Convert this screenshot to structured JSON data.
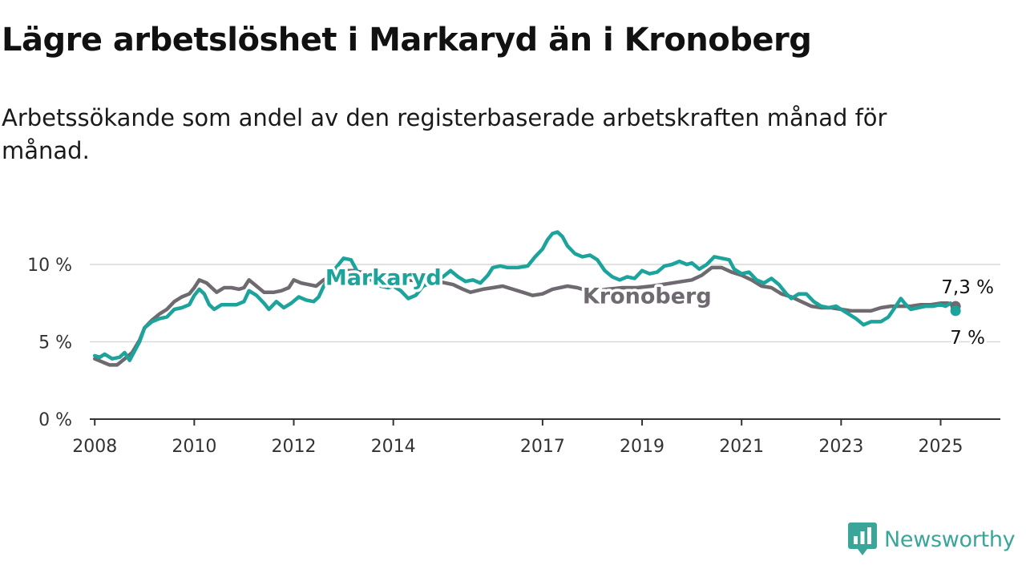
{
  "title": "Lägre arbetslöshet i Markaryd än i Kronoberg",
  "subtitle": "Arbetssökande som andel av den registerbaserade arbetskraften månad för månad.",
  "brand": {
    "name": "Newsworthy",
    "icon": "newsworthy-logo-icon",
    "color": "#3aa69a"
  },
  "chart_data": {
    "type": "line",
    "title": "Lägre arbetslöshet i Markaryd än i Kronoberg",
    "xlabel": "",
    "ylabel": "",
    "xlim": [
      2007.9,
      2026.2
    ],
    "ylim": [
      0,
      10
    ],
    "y_ticks": [
      0,
      5,
      10
    ],
    "y_tick_labels": [
      "0 %",
      "5 %",
      "10 %"
    ],
    "x_ticks": [
      2008,
      2010,
      2012,
      2014,
      2017,
      2019,
      2021,
      2023,
      2025
    ],
    "x_tick_labels": [
      "2008",
      "2010",
      "2012",
      "2014",
      "2017",
      "2019",
      "2021",
      "2023",
      "2025"
    ],
    "grid": true,
    "series": [
      {
        "name": "Kronoberg",
        "color": "#6e6a70",
        "end_label": "7,3 %",
        "points": [
          [
            2008.0,
            3.9
          ],
          [
            2008.15,
            3.7
          ],
          [
            2008.3,
            3.5
          ],
          [
            2008.45,
            3.5
          ],
          [
            2008.6,
            3.9
          ],
          [
            2008.75,
            4.3
          ],
          [
            2008.9,
            5.1
          ],
          [
            2009.0,
            5.9
          ],
          [
            2009.15,
            6.4
          ],
          [
            2009.3,
            6.8
          ],
          [
            2009.45,
            7.1
          ],
          [
            2009.6,
            7.6
          ],
          [
            2009.75,
            7.9
          ],
          [
            2009.9,
            8.1
          ],
          [
            2010.0,
            8.5
          ],
          [
            2010.1,
            9.0
          ],
          [
            2010.25,
            8.8
          ],
          [
            2010.35,
            8.5
          ],
          [
            2010.45,
            8.2
          ],
          [
            2010.6,
            8.5
          ],
          [
            2010.75,
            8.5
          ],
          [
            2010.9,
            8.4
          ],
          [
            2011.0,
            8.5
          ],
          [
            2011.1,
            9.0
          ],
          [
            2011.25,
            8.6
          ],
          [
            2011.4,
            8.2
          ],
          [
            2011.6,
            8.2
          ],
          [
            2011.75,
            8.3
          ],
          [
            2011.9,
            8.5
          ],
          [
            2012.0,
            9.0
          ],
          [
            2012.15,
            8.8
          ],
          [
            2012.3,
            8.7
          ],
          [
            2012.45,
            8.6
          ],
          [
            2012.6,
            9.0
          ],
          [
            2012.8,
            9.3
          ],
          [
            2013.0,
            9.6
          ],
          [
            2013.2,
            9.6
          ],
          [
            2013.5,
            9.4
          ],
          [
            2013.8,
            9.2
          ],
          [
            2014.0,
            9.1
          ],
          [
            2014.3,
            9.0
          ],
          [
            2014.6,
            8.9
          ],
          [
            2014.9,
            8.9
          ],
          [
            2015.2,
            8.7
          ],
          [
            2015.4,
            8.4
          ],
          [
            2015.55,
            8.2
          ],
          [
            2015.8,
            8.4
          ],
          [
            2016.0,
            8.5
          ],
          [
            2016.2,
            8.6
          ],
          [
            2016.4,
            8.4
          ],
          [
            2016.6,
            8.2
          ],
          [
            2016.8,
            8.0
          ],
          [
            2017.0,
            8.1
          ],
          [
            2017.2,
            8.4
          ],
          [
            2017.5,
            8.6
          ],
          [
            2017.7,
            8.5
          ],
          [
            2017.9,
            8.3
          ],
          [
            2018.1,
            8.3
          ],
          [
            2018.3,
            8.4
          ],
          [
            2018.6,
            8.5
          ],
          [
            2018.9,
            8.5
          ],
          [
            2019.2,
            8.6
          ],
          [
            2019.6,
            8.8
          ],
          [
            2020.0,
            9.0
          ],
          [
            2020.2,
            9.3
          ],
          [
            2020.4,
            9.8
          ],
          [
            2020.6,
            9.8
          ],
          [
            2020.8,
            9.5
          ],
          [
            2021.0,
            9.3
          ],
          [
            2021.2,
            9.0
          ],
          [
            2021.4,
            8.6
          ],
          [
            2021.6,
            8.5
          ],
          [
            2021.8,
            8.1
          ],
          [
            2022.0,
            7.9
          ],
          [
            2022.2,
            7.6
          ],
          [
            2022.4,
            7.3
          ],
          [
            2022.6,
            7.2
          ],
          [
            2022.8,
            7.2
          ],
          [
            2023.0,
            7.1
          ],
          [
            2023.2,
            7.0
          ],
          [
            2023.4,
            7.0
          ],
          [
            2023.6,
            7.0
          ],
          [
            2023.8,
            7.2
          ],
          [
            2024.0,
            7.3
          ],
          [
            2024.2,
            7.3
          ],
          [
            2024.4,
            7.3
          ],
          [
            2024.6,
            7.4
          ],
          [
            2024.8,
            7.4
          ],
          [
            2025.0,
            7.5
          ],
          [
            2025.15,
            7.5
          ],
          [
            2025.3,
            7.3
          ]
        ]
      },
      {
        "name": "Markaryd",
        "color": "#1ba39c",
        "end_label": "7 %",
        "points": [
          [
            2008.0,
            4.1
          ],
          [
            2008.1,
            4.0
          ],
          [
            2008.2,
            4.2
          ],
          [
            2008.35,
            3.9
          ],
          [
            2008.5,
            4.0
          ],
          [
            2008.6,
            4.3
          ],
          [
            2008.7,
            3.8
          ],
          [
            2008.8,
            4.4
          ],
          [
            2008.9,
            5.0
          ],
          [
            2009.0,
            5.9
          ],
          [
            2009.15,
            6.3
          ],
          [
            2009.3,
            6.5
          ],
          [
            2009.45,
            6.6
          ],
          [
            2009.6,
            7.1
          ],
          [
            2009.75,
            7.2
          ],
          [
            2009.9,
            7.4
          ],
          [
            2010.0,
            8.0
          ],
          [
            2010.1,
            8.4
          ],
          [
            2010.2,
            8.1
          ],
          [
            2010.3,
            7.4
          ],
          [
            2010.4,
            7.1
          ],
          [
            2010.55,
            7.4
          ],
          [
            2010.7,
            7.4
          ],
          [
            2010.85,
            7.4
          ],
          [
            2011.0,
            7.6
          ],
          [
            2011.1,
            8.3
          ],
          [
            2011.25,
            8.0
          ],
          [
            2011.4,
            7.5
          ],
          [
            2011.5,
            7.1
          ],
          [
            2011.65,
            7.6
          ],
          [
            2011.8,
            7.2
          ],
          [
            2011.95,
            7.5
          ],
          [
            2012.1,
            7.9
          ],
          [
            2012.25,
            7.7
          ],
          [
            2012.4,
            7.6
          ],
          [
            2012.5,
            7.9
          ],
          [
            2012.6,
            8.6
          ],
          [
            2012.75,
            9.4
          ],
          [
            2012.9,
            10.0
          ],
          [
            2013.0,
            10.4
          ],
          [
            2013.15,
            10.3
          ],
          [
            2013.3,
            9.4
          ],
          [
            2013.45,
            9.0
          ],
          [
            2013.6,
            9.0
          ],
          [
            2013.75,
            8.6
          ],
          [
            2013.9,
            8.5
          ],
          [
            2014.0,
            8.6
          ],
          [
            2014.15,
            8.3
          ],
          [
            2014.3,
            7.8
          ],
          [
            2014.45,
            8.0
          ],
          [
            2014.6,
            8.6
          ],
          [
            2014.75,
            8.8
          ],
          [
            2014.9,
            9.0
          ],
          [
            2015.0,
            9.2
          ],
          [
            2015.15,
            9.6
          ],
          [
            2015.3,
            9.2
          ],
          [
            2015.45,
            8.9
          ],
          [
            2015.6,
            9.0
          ],
          [
            2015.75,
            8.8
          ],
          [
            2015.9,
            9.3
          ],
          [
            2016.0,
            9.8
          ],
          [
            2016.15,
            9.9
          ],
          [
            2016.3,
            9.8
          ],
          [
            2016.5,
            9.8
          ],
          [
            2016.7,
            9.9
          ],
          [
            2016.85,
            10.5
          ],
          [
            2017.0,
            11.0
          ],
          [
            2017.1,
            11.6
          ],
          [
            2017.2,
            12.0
          ],
          [
            2017.3,
            12.1
          ],
          [
            2017.4,
            11.8
          ],
          [
            2017.5,
            11.2
          ],
          [
            2017.65,
            10.7
          ],
          [
            2017.8,
            10.5
          ],
          [
            2017.95,
            10.6
          ],
          [
            2018.1,
            10.3
          ],
          [
            2018.25,
            9.6
          ],
          [
            2018.4,
            9.2
          ],
          [
            2018.55,
            9.0
          ],
          [
            2018.7,
            9.2
          ],
          [
            2018.85,
            9.1
          ],
          [
            2019.0,
            9.6
          ],
          [
            2019.15,
            9.4
          ],
          [
            2019.3,
            9.5
          ],
          [
            2019.45,
            9.9
          ],
          [
            2019.6,
            10.0
          ],
          [
            2019.75,
            10.2
          ],
          [
            2019.9,
            10.0
          ],
          [
            2020.0,
            10.1
          ],
          [
            2020.15,
            9.7
          ],
          [
            2020.3,
            10.0
          ],
          [
            2020.45,
            10.5
          ],
          [
            2020.6,
            10.4
          ],
          [
            2020.75,
            10.3
          ],
          [
            2020.85,
            9.7
          ],
          [
            2021.0,
            9.4
          ],
          [
            2021.15,
            9.5
          ],
          [
            2021.3,
            9.0
          ],
          [
            2021.45,
            8.8
          ],
          [
            2021.6,
            9.1
          ],
          [
            2021.75,
            8.7
          ],
          [
            2021.9,
            8.1
          ],
          [
            2022.0,
            7.8
          ],
          [
            2022.15,
            8.1
          ],
          [
            2022.3,
            8.1
          ],
          [
            2022.45,
            7.6
          ],
          [
            2022.6,
            7.3
          ],
          [
            2022.75,
            7.2
          ],
          [
            2022.9,
            7.3
          ],
          [
            2023.0,
            7.1
          ],
          [
            2023.15,
            6.8
          ],
          [
            2023.3,
            6.5
          ],
          [
            2023.45,
            6.1
          ],
          [
            2023.6,
            6.3
          ],
          [
            2023.8,
            6.3
          ],
          [
            2023.95,
            6.6
          ],
          [
            2024.1,
            7.3
          ],
          [
            2024.2,
            7.8
          ],
          [
            2024.3,
            7.4
          ],
          [
            2024.4,
            7.1
          ],
          [
            2024.55,
            7.2
          ],
          [
            2024.7,
            7.3
          ],
          [
            2024.85,
            7.3
          ],
          [
            2025.0,
            7.4
          ],
          [
            2025.1,
            7.3
          ],
          [
            2025.2,
            7.5
          ],
          [
            2025.3,
            7.0
          ]
        ]
      }
    ],
    "labels": [
      {
        "series": "Markaryd",
        "text": "Markaryd",
        "x": 2013.8,
        "y": 9.2
      },
      {
        "series": "Kronoberg",
        "text": "Kronoberg",
        "x": 2019.1,
        "y": 8.0
      }
    ]
  }
}
